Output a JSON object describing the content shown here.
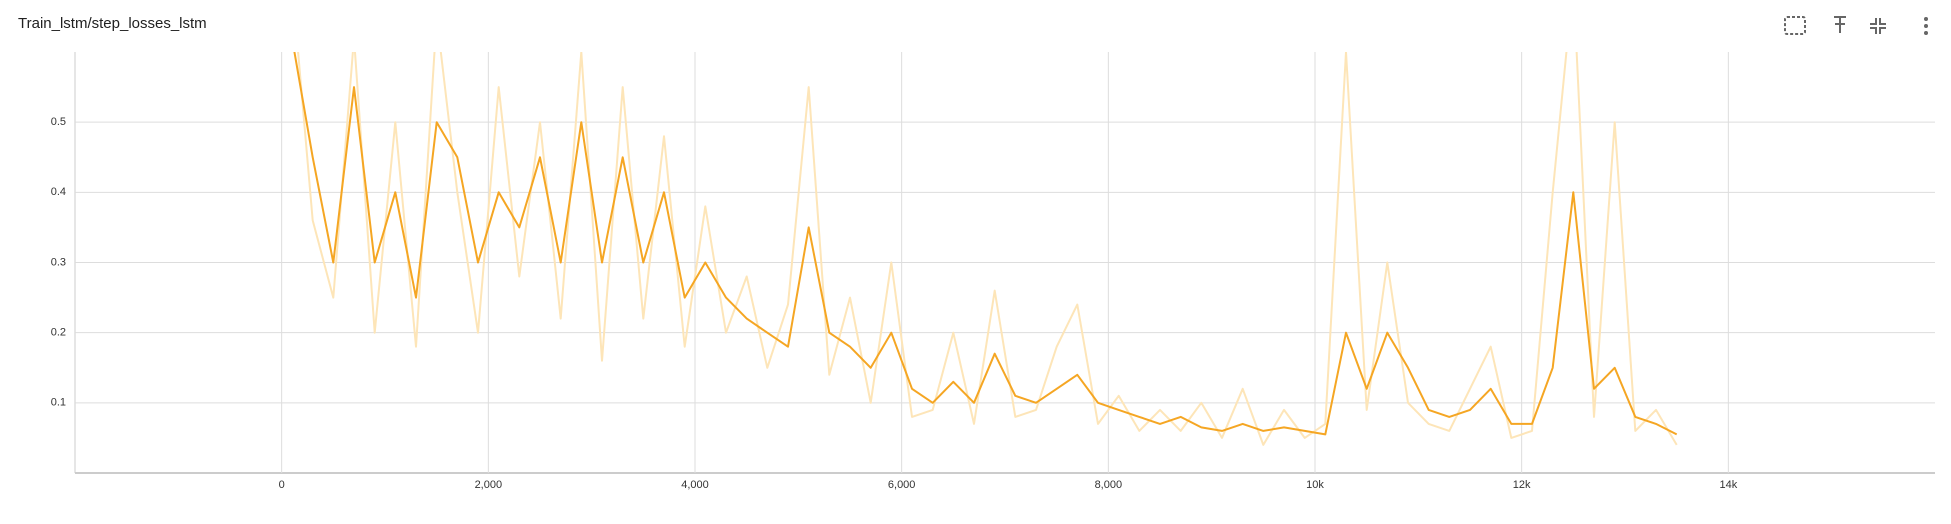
{
  "chart_data": {
    "type": "line",
    "title": "Train_lstm/step_losses_lstm",
    "x": [
      100,
      300,
      500,
      700,
      900,
      1100,
      1300,
      1500,
      1700,
      1900,
      2100,
      2300,
      2500,
      2700,
      2900,
      3100,
      3300,
      3500,
      3700,
      3900,
      4100,
      4300,
      4500,
      4700,
      4900,
      5100,
      5300,
      5500,
      5700,
      5900,
      6100,
      6300,
      6500,
      6700,
      6900,
      7100,
      7300,
      7500,
      7700,
      7900,
      8100,
      8300,
      8500,
      8700,
      8900,
      9100,
      9300,
      9500,
      9700,
      9900,
      10100,
      10300,
      10500,
      10700,
      10900,
      11100,
      11300,
      11500,
      11700,
      11900,
      12100,
      12300,
      12500,
      12700,
      12900,
      13100,
      13300,
      13500
    ],
    "series": [
      {
        "color": "#fde5b8",
        "values": [
          0.7,
          0.36,
          0.25,
          0.62,
          0.2,
          0.5,
          0.18,
          0.65,
          0.4,
          0.2,
          0.55,
          0.28,
          0.5,
          0.22,
          0.6,
          0.16,
          0.55,
          0.22,
          0.48,
          0.18,
          0.38,
          0.2,
          0.28,
          0.15,
          0.24,
          0.55,
          0.14,
          0.25,
          0.1,
          0.3,
          0.08,
          0.09,
          0.2,
          0.07,
          0.26,
          0.08,
          0.09,
          0.18,
          0.24,
          0.07,
          0.11,
          0.06,
          0.09,
          0.06,
          0.1,
          0.05,
          0.12,
          0.04,
          0.09,
          0.05,
          0.07,
          0.6,
          0.09,
          0.3,
          0.1,
          0.07,
          0.06,
          0.12,
          0.18,
          0.05,
          0.06,
          0.4,
          0.7,
          0.08,
          0.5,
          0.06,
          0.09,
          0.04
        ]
      },
      {
        "color": "#f5a623",
        "values": [
          0.62,
          0.45,
          0.3,
          0.55,
          0.3,
          0.4,
          0.25,
          0.5,
          0.45,
          0.3,
          0.4,
          0.35,
          0.45,
          0.3,
          0.5,
          0.3,
          0.45,
          0.3,
          0.4,
          0.25,
          0.3,
          0.25,
          0.22,
          0.2,
          0.18,
          0.35,
          0.2,
          0.18,
          0.15,
          0.2,
          0.12,
          0.1,
          0.13,
          0.1,
          0.17,
          0.11,
          0.1,
          0.12,
          0.14,
          0.1,
          0.09,
          0.08,
          0.07,
          0.08,
          0.065,
          0.06,
          0.07,
          0.06,
          0.065,
          0.06,
          0.055,
          0.2,
          0.12,
          0.2,
          0.15,
          0.09,
          0.08,
          0.09,
          0.12,
          0.07,
          0.07,
          0.15,
          0.4,
          0.12,
          0.15,
          0.08,
          0.07,
          0.055
        ]
      }
    ],
    "xlim": [
      -2000,
      16000
    ],
    "ylim": [
      0,
      0.6
    ],
    "xticks": [
      0,
      {
        "value": 2000,
        "label": "2,000"
      },
      {
        "value": 4000,
        "label": "4,000"
      },
      {
        "value": 6000,
        "label": "6,000"
      },
      {
        "value": 8000,
        "label": "8,000"
      },
      {
        "value": 10000,
        "label": "10k"
      },
      {
        "value": 12000,
        "label": "12k"
      },
      {
        "value": 14000,
        "label": "14k"
      }
    ],
    "yticks": [
      0.1,
      0.2,
      0.3,
      0.4,
      0.5
    ],
    "grid": true
  }
}
